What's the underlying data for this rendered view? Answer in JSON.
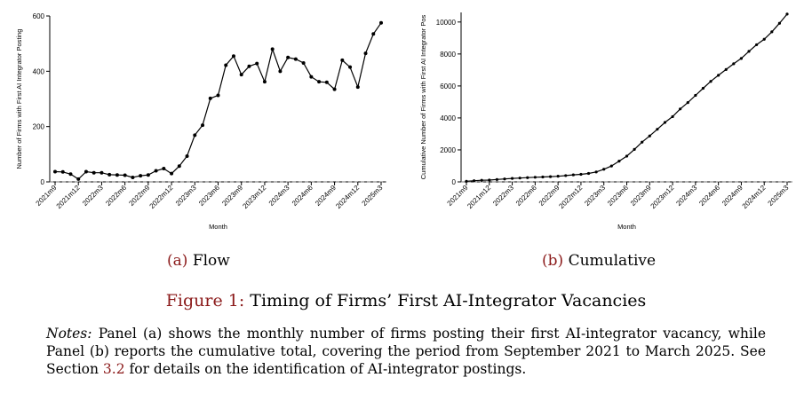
{
  "chart_data": [
    {
      "type": "line",
      "panel": "a",
      "xlabel": "Month",
      "ylabel": "Number of Firms with First AI Integrator Posting",
      "ylim": [
        0,
        600
      ],
      "yticks": [
        0,
        200,
        400,
        600
      ],
      "reference_line_y": 0,
      "months": [
        "2021m9",
        "2021m10",
        "2021m11",
        "2021m12",
        "2022m1",
        "2022m2",
        "2022m3",
        "2022m4",
        "2022m5",
        "2022m6",
        "2022m7",
        "2022m8",
        "2022m9",
        "2022m10",
        "2022m11",
        "2022m12",
        "2023m1",
        "2023m2",
        "2023m3",
        "2023m4",
        "2023m5",
        "2023m6",
        "2023m7",
        "2023m8",
        "2023m9",
        "2023m10",
        "2023m11",
        "2023m12",
        "2024m1",
        "2024m2",
        "2024m3",
        "2024m4",
        "2024m5",
        "2024m6",
        "2024m7",
        "2024m8",
        "2024m9",
        "2024m10",
        "2024m11",
        "2024m12",
        "2025m1",
        "2025m2",
        "2025m3"
      ],
      "tick_labels": [
        "2021m9",
        "2021m12",
        "2022m3",
        "2022m6",
        "2022m9",
        "2022m12",
        "2023m3",
        "2023m6",
        "2023m9",
        "2023m12",
        "2024m3",
        "2024m6",
        "2024m9",
        "2024m12",
        "2025m3"
      ],
      "values": [
        37,
        36,
        28,
        10,
        37,
        33,
        33,
        26,
        25,
        24,
        16,
        22,
        25,
        40,
        48,
        30,
        57,
        93,
        169,
        205,
        302,
        313,
        422,
        455,
        388,
        418,
        428,
        362,
        480,
        400,
        450,
        444,
        430,
        380,
        362,
        360,
        335,
        440,
        415,
        343,
        465,
        535,
        575
      ]
    },
    {
      "type": "line",
      "panel": "b",
      "xlabel": "Month",
      "ylabel": "Cumulative Number of Firms with First AI Integrator Pos",
      "ylim": [
        0,
        10600
      ],
      "yticks": [
        0,
        2000,
        4000,
        6000,
        8000,
        10000
      ],
      "reference_line_y": 0,
      "months": [
        "2021m9",
        "2021m10",
        "2021m11",
        "2021m12",
        "2022m1",
        "2022m2",
        "2022m3",
        "2022m4",
        "2022m5",
        "2022m6",
        "2022m7",
        "2022m8",
        "2022m9",
        "2022m10",
        "2022m11",
        "2022m12",
        "2023m1",
        "2023m2",
        "2023m3",
        "2023m4",
        "2023m5",
        "2023m6",
        "2023m7",
        "2023m8",
        "2023m9",
        "2023m10",
        "2023m11",
        "2023m12",
        "2024m1",
        "2024m2",
        "2024m3",
        "2024m4",
        "2024m5",
        "2024m6",
        "2024m7",
        "2024m8",
        "2024m9",
        "2024m10",
        "2024m11",
        "2024m12",
        "2025m1",
        "2025m2",
        "2025m3"
      ],
      "tick_labels": [
        "2021m9",
        "2021m12",
        "2022m3",
        "2022m6",
        "2022m9",
        "2022m12",
        "2023m3",
        "2023m6",
        "2023m9",
        "2023m12",
        "2024m3",
        "2024m6",
        "2024m9",
        "2024m12",
        "2025m3"
      ],
      "values": [
        37,
        73,
        101,
        111,
        148,
        181,
        214,
        240,
        265,
        289,
        305,
        327,
        352,
        392,
        440,
        470,
        527,
        620,
        789,
        994,
        1296,
        1609,
        2031,
        2486,
        2874,
        3292,
        3720,
        4082,
        4562,
        4962,
        5412,
        5856,
        6286,
        6666,
        7028,
        7388,
        7723,
        8163,
        8578,
        8921,
        9386,
        9921,
        10496
      ]
    }
  ],
  "captions": {
    "a_tag": "(a)",
    "a_text": "Flow",
    "b_tag": "(b)",
    "b_text": "Cumulative",
    "figure_tag": "Figure 1:",
    "figure_text": "Timing of Firms’ First AI-Integrator Vacancies"
  },
  "notes": {
    "label": "Notes:",
    "text_before": "Panel (a) shows the monthly number of firms posting their first AI-integrator vacancy, while Panel (b) reports the cumulative total, covering the period from September 2021 to March 2025. See Section",
    "section_ref": "3.2",
    "text_after": "for details on the identification of AI-integrator postings."
  }
}
